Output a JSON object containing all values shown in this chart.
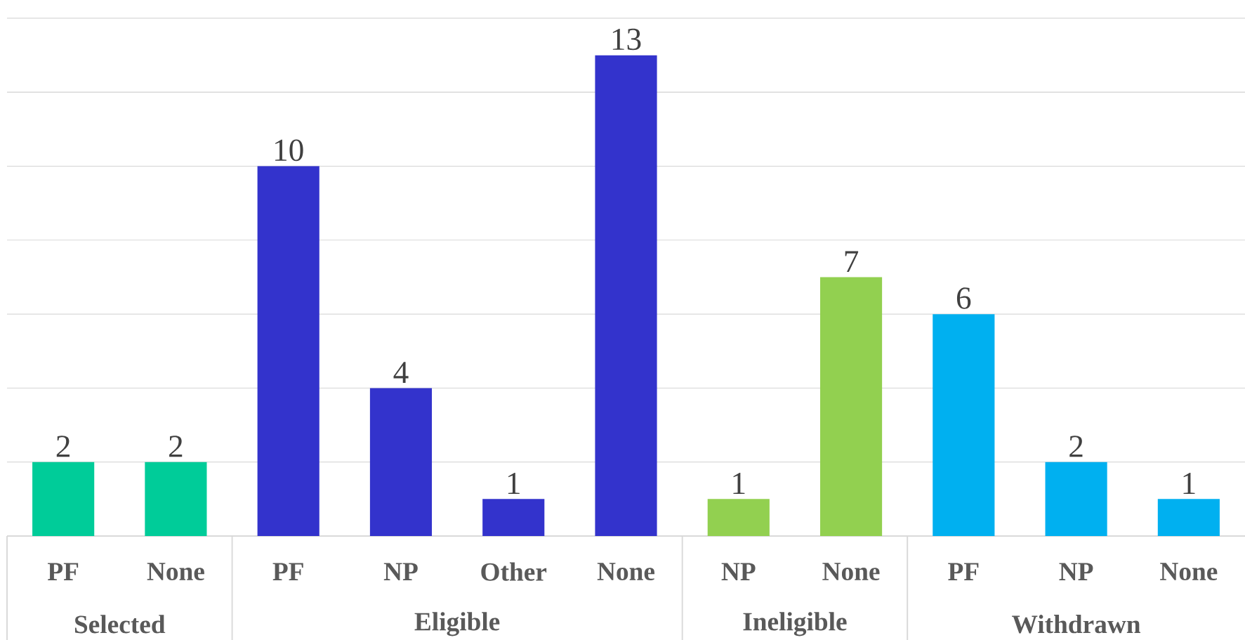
{
  "chart_data": {
    "type": "bar",
    "categories": [
      "PF",
      "None",
      "PF",
      "NP",
      "Other",
      "None",
      "NP",
      "None",
      "PF",
      "NP",
      "None"
    ],
    "series": [
      {
        "color": "#00cc99",
        "values": [
          2,
          2,
          null,
          null,
          null,
          null,
          null,
          null,
          null,
          null,
          null
        ]
      },
      {
        "color": "#3333cc",
        "values": [
          null,
          null,
          10,
          4,
          1,
          13,
          null,
          null,
          null,
          null,
          null
        ]
      },
      {
        "color": "#92d050",
        "values": [
          null,
          null,
          null,
          null,
          null,
          null,
          1,
          7,
          null,
          null,
          null
        ]
      },
      {
        "color": "#00b0f0",
        "values": [
          null,
          null,
          null,
          null,
          null,
          null,
          null,
          null,
          6,
          2,
          1
        ]
      }
    ],
    "ylim": [
      0,
      14
    ],
    "yticks": [
      {
        "value": 0,
        "label": null
      },
      {
        "value": 2,
        "label": null
      },
      {
        "value": 4,
        "label": null
      },
      {
        "value": 6,
        "label": null
      },
      {
        "value": 8,
        "label": null
      },
      {
        "value": 10,
        "label": null
      },
      {
        "value": 12,
        "label": null
      },
      {
        "value": 14,
        "label": null
      }
    ],
    "grid": "y",
    "tick_labels": "x",
    "data_labels": true,
    "annotations": [
      "Selected",
      "Eligible",
      "Ineligible",
      "Withdrawn"
    ]
  }
}
